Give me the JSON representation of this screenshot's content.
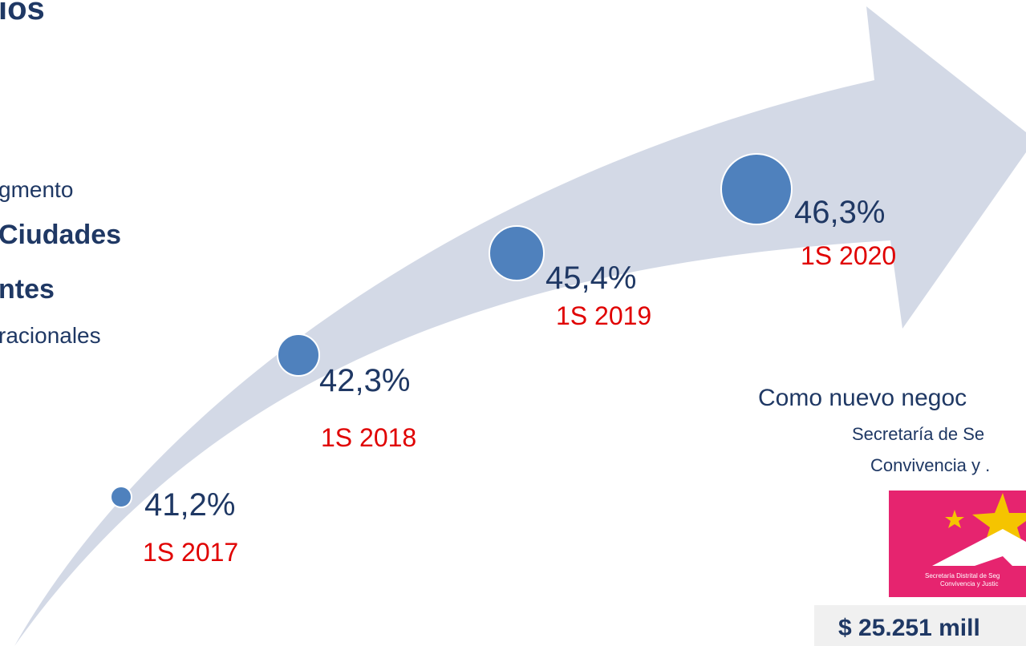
{
  "header": {
    "title": "ios"
  },
  "left_text": [
    "gmento",
    "Ciudades",
    "ntes",
    "racionales"
  ],
  "points": [
    {
      "value": "41,2%",
      "period": "1S 2017"
    },
    {
      "value": "42,3%",
      "period": "1S 2018"
    },
    {
      "value": "45,4%",
      "period": "1S 2019"
    },
    {
      "value": "46,3%",
      "period": "1S 2020"
    }
  ],
  "new_business": {
    "heading": "Como nuevo negoc",
    "entity_line1": "Secretaría de Se",
    "entity_line2": "Convivencia y .",
    "logo_line1": "Secretaría Distrital de Seg",
    "logo_line2": "Convivencia y Justic",
    "amount": "$ 25.251 mill"
  }
}
